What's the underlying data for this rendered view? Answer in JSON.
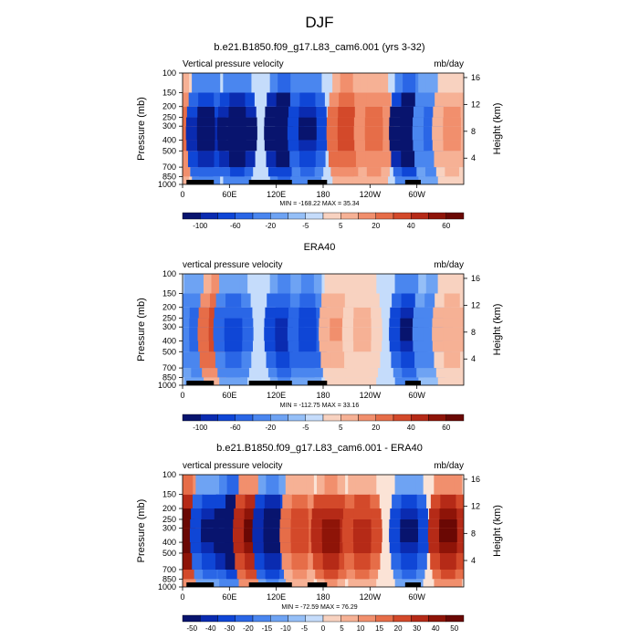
{
  "page_title": "DJF",
  "panels": [
    {
      "title": "b.e21.B1850.f09_g17.L83_cam6.001 (yrs 3-32)",
      "left_label": "Vertical pressure velocity",
      "right_label": "mb/day",
      "minmax": "MIN = -168.22   MAX =  35.34",
      "colorbar_labels": [
        "-100",
        "-60",
        "-20",
        "-5",
        "5",
        "20",
        "40",
        "60"
      ],
      "palette": [
        "#08146e",
        "#0a2bb0",
        "#0f46d6",
        "#2a66e6",
        "#4a86ef",
        "#6ea3f3",
        "#95bff7",
        "#c5dcfb",
        "#f8d2c0",
        "#f6b195",
        "#f18f6d",
        "#e66d48",
        "#d3492a",
        "#b52a17",
        "#8e1408",
        "#6a0804"
      ]
    },
    {
      "title": "ERA40",
      "left_label": "vertical pressure velocity",
      "right_label": "mb/day",
      "minmax": "MIN = -112.75   MAX =  33.16",
      "colorbar_labels": [
        "-100",
        "-60",
        "-20",
        "-5",
        "5",
        "20",
        "40",
        "60"
      ],
      "palette": [
        "#08146e",
        "#0a2bb0",
        "#0f46d6",
        "#2a66e6",
        "#4a86ef",
        "#6ea3f3",
        "#95bff7",
        "#c5dcfb",
        "#f8d2c0",
        "#f6b195",
        "#f18f6d",
        "#e66d48",
        "#d3492a",
        "#b52a17",
        "#8e1408",
        "#6a0804"
      ]
    },
    {
      "title": "b.e21.B1850.f09_g17.L83_cam6.001 - ERA40",
      "left_label": "vertical pressure velocity",
      "right_label": "mb/day",
      "minmax": "MIN = -72.59   MAX =  76.29",
      "colorbar_labels": [
        "-50",
        "-40",
        "-30",
        "-20",
        "-15",
        "-10",
        "-5",
        "0",
        "5",
        "10",
        "15",
        "20",
        "30",
        "40",
        "50"
      ],
      "palette": [
        "#08146e",
        "#0a2bb0",
        "#0f46d6",
        "#2a66e6",
        "#4a86ef",
        "#6ea3f3",
        "#95bff7",
        "#c5dcfb",
        "#f8d2c0",
        "#f6b195",
        "#f18f6d",
        "#e66d48",
        "#d3492a",
        "#b52a17",
        "#8e1408",
        "#6a0804"
      ]
    }
  ],
  "chart_data": [
    {
      "type": "heatmap",
      "title": "b.e21.B1850.f09_g17.L83_cam6.001 (yrs 3-32)",
      "ylabel": "Pressure (mb)",
      "ylabel_right": "Height (km)",
      "x_ticks": [
        "0",
        "60E",
        "120E",
        "180",
        "120W",
        "60W"
      ],
      "y_ticks": [
        "100",
        "150",
        "200",
        "250",
        "300",
        "400",
        "500",
        "700",
        "850",
        "1000"
      ],
      "y_right_ticks": [
        "16",
        "12",
        "8",
        "4"
      ],
      "units": "mb/day",
      "min": -168.22,
      "max": 35.34,
      "levels": [
        -100,
        -80,
        -60,
        -40,
        -20,
        -10,
        -5,
        -2,
        2,
        5,
        10,
        20,
        30,
        40,
        50,
        60
      ],
      "features": [
        {
          "lon": 0,
          "sign": 1,
          "value": 18
        },
        {
          "lon": 30,
          "sign": -1,
          "value": -90
        },
        {
          "lon": 70,
          "sign": -1,
          "value": -110
        },
        {
          "lon": 130,
          "sign": -1,
          "value": -130
        },
        {
          "lon": 160,
          "sign": -1,
          "value": -80
        },
        {
          "lon": 210,
          "sign": 1,
          "value": 30
        },
        {
          "lon": 245,
          "sign": 1,
          "value": 20
        },
        {
          "lon": 290,
          "sign": -1,
          "value": -120
        },
        {
          "lon": 320,
          "sign": -1,
          "value": -40
        },
        {
          "lon": 345,
          "sign": 1,
          "value": 10
        }
      ]
    },
    {
      "type": "heatmap",
      "title": "ERA40",
      "ylabel": "Pressure (mb)",
      "ylabel_right": "Height (km)",
      "x_ticks": [
        "0",
        "60E",
        "120E",
        "180",
        "120W",
        "60W"
      ],
      "y_ticks": [
        "100",
        "150",
        "200",
        "250",
        "300",
        "400",
        "500",
        "700",
        "850",
        "1000"
      ],
      "y_right_ticks": [
        "16",
        "12",
        "8",
        "4"
      ],
      "units": "mb/day",
      "min": -112.75,
      "max": 33.16,
      "levels": [
        -100,
        -80,
        -60,
        -40,
        -20,
        -10,
        -5,
        -2,
        2,
        5,
        10,
        20,
        30,
        40,
        50,
        60
      ],
      "features": [
        {
          "lon": 20,
          "sign": -1,
          "value": -40
        },
        {
          "lon": 45,
          "sign": 1,
          "value": 30
        },
        {
          "lon": 65,
          "sign": -1,
          "value": -50
        },
        {
          "lon": 130,
          "sign": -1,
          "value": -70
        },
        {
          "lon": 160,
          "sign": -1,
          "value": -60
        },
        {
          "lon": 200,
          "sign": 1,
          "value": 8
        },
        {
          "lon": 230,
          "sign": 1,
          "value": 5
        },
        {
          "lon": 290,
          "sign": -1,
          "value": -80
        },
        {
          "lon": 320,
          "sign": -1,
          "value": -30
        },
        {
          "lon": 345,
          "sign": 1,
          "value": 6
        }
      ]
    },
    {
      "type": "heatmap",
      "title": "b.e21.B1850.f09_g17.L83_cam6.001 - ERA40",
      "ylabel": "Pressure (mb)",
      "ylabel_right": "Height (km)",
      "x_ticks": [
        "0",
        "60E",
        "120E",
        "180",
        "120W",
        "60W"
      ],
      "y_ticks": [
        "100",
        "150",
        "200",
        "250",
        "300",
        "400",
        "500",
        "700",
        "850",
        "1000"
      ],
      "y_right_ticks": [
        "16",
        "12",
        "8",
        "4"
      ],
      "units": "mb/day",
      "min": -72.59,
      "max": 76.29,
      "levels": [
        -50,
        -40,
        -30,
        -20,
        -15,
        -10,
        -5,
        0,
        5,
        10,
        15,
        20,
        30,
        40,
        50
      ],
      "features": [
        {
          "lon": 5,
          "sign": 1,
          "value": 45
        },
        {
          "lon": 35,
          "sign": -1,
          "value": -40
        },
        {
          "lon": 65,
          "sign": -1,
          "value": -60
        },
        {
          "lon": 90,
          "sign": 1,
          "value": 40
        },
        {
          "lon": 115,
          "sign": -1,
          "value": -50
        },
        {
          "lon": 150,
          "sign": 1,
          "value": 20
        },
        {
          "lon": 190,
          "sign": 1,
          "value": 35
        },
        {
          "lon": 230,
          "sign": 1,
          "value": 25
        },
        {
          "lon": 290,
          "sign": -1,
          "value": -40
        },
        {
          "lon": 340,
          "sign": 1,
          "value": 40
        }
      ]
    }
  ]
}
